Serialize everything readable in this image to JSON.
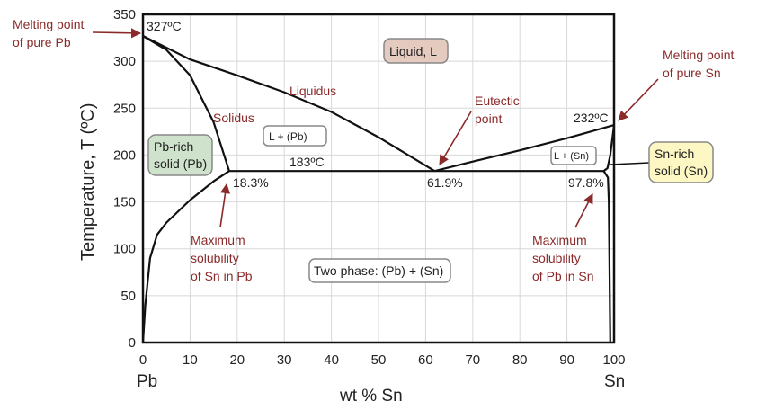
{
  "chart_data": {
    "type": "line",
    "title": "",
    "xlabel": "wt % Sn",
    "ylabel": "Temperature, T (ºC)",
    "xlim": [
      0,
      100
    ],
    "ylim": [
      0,
      350
    ],
    "xticks": [
      0,
      10,
      20,
      30,
      40,
      50,
      60,
      70,
      80,
      90,
      100
    ],
    "yticks": [
      0,
      50,
      100,
      150,
      200,
      250,
      300,
      350
    ],
    "grid": true,
    "x_end_labels": {
      "left": "Pb",
      "right": "Sn"
    },
    "series": [
      {
        "key": "liquidus_left",
        "points": [
          [
            0,
            327
          ],
          [
            10,
            302
          ],
          [
            20,
            285
          ],
          [
            30,
            267
          ],
          [
            40,
            246
          ],
          [
            50,
            219
          ],
          [
            61.9,
            183
          ]
        ]
      },
      {
        "key": "liquidus_right",
        "points": [
          [
            61.9,
            183
          ],
          [
            70,
            193
          ],
          [
            80,
            205
          ],
          [
            90,
            218
          ],
          [
            100,
            232
          ]
        ]
      },
      {
        "key": "solidus_pb",
        "points": [
          [
            0,
            327
          ],
          [
            5,
            312
          ],
          [
            10,
            285
          ],
          [
            15,
            235
          ],
          [
            18.3,
            183
          ]
        ]
      },
      {
        "key": "solvus_pb",
        "points": [
          [
            0,
            0
          ],
          [
            0.5,
            40
          ],
          [
            1.5,
            90
          ],
          [
            3,
            115
          ],
          [
            5,
            128
          ],
          [
            10,
            152
          ],
          [
            15,
            172
          ],
          [
            18.3,
            183
          ]
        ]
      },
      {
        "key": "eutectic_isotherm",
        "points": [
          [
            18.3,
            183
          ],
          [
            97.8,
            183
          ]
        ]
      },
      {
        "key": "solidus_sn",
        "points": [
          [
            97.8,
            183
          ],
          [
            98.6,
            186
          ],
          [
            99.2,
            200
          ],
          [
            100,
            232
          ]
        ]
      },
      {
        "key": "solvus_sn",
        "points": [
          [
            97.8,
            183
          ],
          [
            98.7,
            176
          ],
          [
            98.9,
            150
          ],
          [
            99.2,
            0
          ]
        ]
      }
    ],
    "annotations": {
      "pb_melt_temp": "327ºC",
      "sn_melt_temp": "232ºC",
      "eutectic_temp": "183ºC",
      "pb_max_sol": "18.3%",
      "eutectic_comp": "61.9%",
      "sn_max_sol": "97.8%",
      "liquidus": "Liquidus",
      "solidus": "Solidus",
      "melt_pb": "Melting point of pure Pb",
      "melt_sn": "Melting point of pure Sn",
      "eutectic_point": "Eutectic point",
      "max_sol_sn_in_pb": "Maximum solubility of Sn in Pb",
      "max_sol_pb_in_sn": "Maximum solubility of Pb in Sn"
    },
    "regions": {
      "liquid": "Liquid, L",
      "l_pb": "L + (Pb)",
      "l_sn": "L + (Sn)",
      "pb_solid": "Pb-rich solid (Pb)",
      "sn_solid": "Sn-rich solid (Sn)",
      "two_phase": "Two phase: (Pb) + (Sn)"
    },
    "colors": {
      "annotation": "#8b2a2a",
      "liquid_box": "#e5cbbf",
      "pb_box": "#cfe3cc",
      "sn_box": "#fdf7c3",
      "grid": "#d8d8d8"
    }
  }
}
